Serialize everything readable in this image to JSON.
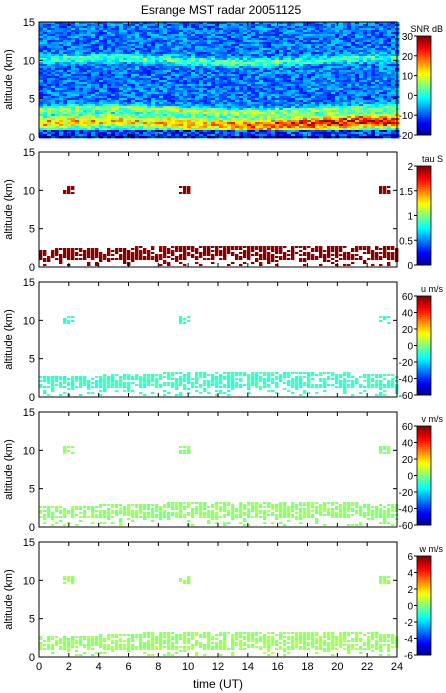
{
  "title": "Esrange MST radar 20051125",
  "xlabel": "time (UT)",
  "colors": {
    "colormap": [
      "#000080",
      "#0000ff",
      "#0080ff",
      "#00ffff",
      "#80ff80",
      "#ffff00",
      "#ff8000",
      "#ff0000",
      "#800000"
    ],
    "axis": "#000000",
    "background": "#ffffff"
  },
  "chart_data": [
    {
      "type": "heatmap",
      "quantity": "SNR",
      "ylabel": "altitude (km)",
      "colorbar_label": "SNR dB",
      "xlim": [
        0,
        24
      ],
      "ylim": [
        0,
        15
      ],
      "clim": [
        -20,
        30
      ],
      "xticks": [
        "0",
        "2",
        "4",
        "6",
        "8",
        "10",
        "12",
        "14",
        "16",
        "18",
        "20",
        "22",
        "24"
      ],
      "yticks": [
        "0",
        "5",
        "10",
        "15"
      ],
      "cticks": [
        "-20",
        "-10",
        "0",
        "10",
        "20",
        "30"
      ],
      "grid": false,
      "x_hours": [
        0,
        2,
        4,
        6,
        8,
        10,
        12,
        14,
        16,
        18,
        20,
        22,
        24
      ],
      "layers": [
        {
          "altitude_km": 1.8,
          "values_db": [
            14,
            14,
            13,
            13,
            12,
            14,
            16,
            17,
            22,
            23,
            24,
            25,
            23
          ]
        },
        {
          "altitude_km": 3.5,
          "values_db": [
            6,
            6,
            5,
            5,
            5,
            7,
            8,
            7,
            6,
            5,
            4,
            3,
            2
          ]
        },
        {
          "altitude_km": 10.0,
          "values_db": [
            3,
            3,
            3,
            3,
            3,
            3,
            4,
            4,
            3,
            3,
            3,
            2,
            2
          ]
        }
      ],
      "background_db": -8
    },
    {
      "type": "heatmap",
      "quantity": "tau",
      "ylabel": "altitude (km)",
      "colorbar_label": "tau S",
      "xlim": [
        0,
        24
      ],
      "ylim": [
        0,
        15
      ],
      "clim": [
        0,
        2
      ],
      "xticks": [
        "0",
        "2",
        "4",
        "6",
        "8",
        "10",
        "12",
        "14",
        "16",
        "18",
        "20",
        "22",
        "24"
      ],
      "yticks": [
        "0",
        "5",
        "10",
        "15"
      ],
      "cticks": [
        "0",
        "0.5",
        "1",
        "1.5",
        "2"
      ],
      "grid": false,
      "typical_value_s": 2.0,
      "band_km": [
        0.8,
        3.2
      ]
    },
    {
      "type": "heatmap",
      "quantity": "u",
      "ylabel": "altitude (km)",
      "colorbar_label": "u m/s",
      "xlim": [
        0,
        24
      ],
      "ylim": [
        0,
        15
      ],
      "clim": [
        -60,
        60
      ],
      "xticks": [
        "0",
        "2",
        "4",
        "6",
        "8",
        "10",
        "12",
        "14",
        "16",
        "18",
        "20",
        "22",
        "24"
      ],
      "yticks": [
        "0",
        "5",
        "10",
        "15"
      ],
      "cticks": [
        "-60",
        "-40",
        "-20",
        "0",
        "20",
        "40",
        "60"
      ],
      "grid": false,
      "typical_value_ms": -8,
      "band_km": [
        1.2,
        3.6
      ]
    },
    {
      "type": "heatmap",
      "quantity": "v",
      "ylabel": "altitude (km)",
      "colorbar_label": "v m/s",
      "xlim": [
        0,
        24
      ],
      "ylim": [
        0,
        15
      ],
      "clim": [
        -60,
        60
      ],
      "xticks": [
        "0",
        "2",
        "4",
        "6",
        "8",
        "10",
        "12",
        "14",
        "16",
        "18",
        "20",
        "22",
        "24"
      ],
      "yticks": [
        "0",
        "5",
        "10",
        "15"
      ],
      "cticks": [
        "-60",
        "-40",
        "-20",
        "0",
        "20",
        "40",
        "60"
      ],
      "grid": false,
      "typical_value_ms": 2,
      "band_km": [
        1.2,
        3.6
      ]
    },
    {
      "type": "heatmap",
      "quantity": "w",
      "ylabel": "altitude (km)",
      "colorbar_label": "w m/s",
      "xlim": [
        0,
        24
      ],
      "ylim": [
        0,
        15
      ],
      "clim": [
        -6,
        6
      ],
      "xticks": [
        "0",
        "2",
        "4",
        "6",
        "8",
        "10",
        "12",
        "14",
        "16",
        "18",
        "20",
        "22",
        "24"
      ],
      "yticks": [
        "0",
        "5",
        "10",
        "15"
      ],
      "cticks": [
        "-6",
        "-4",
        "-2",
        "0",
        "2",
        "4",
        "6"
      ],
      "grid": false,
      "typical_value_ms": 0.3,
      "band_km": [
        0.8,
        3.8
      ]
    }
  ]
}
